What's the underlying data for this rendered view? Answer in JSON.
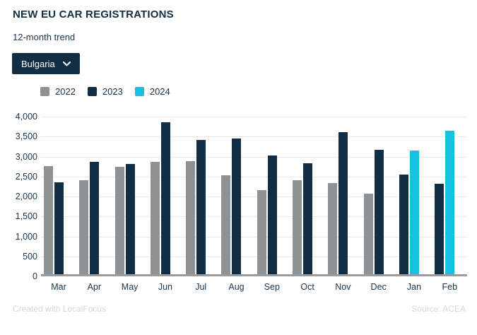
{
  "header": {
    "title": "NEW EU CAR REGISTRATIONS",
    "subtitle": "12-month trend",
    "country_selector": {
      "value": "Bulgaria"
    }
  },
  "legend": [
    {
      "label": "2022",
      "color": "#8f9294"
    },
    {
      "label": "2023",
      "color": "#112e44"
    },
    {
      "label": "2024",
      "color": "#16c2e0"
    }
  ],
  "chart_data": {
    "type": "bar",
    "title": "NEW EU CAR REGISTRATIONS",
    "subtitle": "12-month trend",
    "categories": [
      "Mar",
      "Apr",
      "May",
      "Jun",
      "Jul",
      "Aug",
      "Sep",
      "Oct",
      "Nov",
      "Dec",
      "Jan",
      "Feb"
    ],
    "series": [
      {
        "name": "2022",
        "color": "#8f9294",
        "values": [
          2700,
          2350,
          2690,
          2810,
          2830,
          2470,
          2100,
          2360,
          2290,
          2010,
          null,
          null
        ]
      },
      {
        "name": "2023",
        "color": "#112e44",
        "values": [
          2300,
          2820,
          2760,
          3800,
          3370,
          3400,
          2970,
          2780,
          3560,
          3110,
          2490,
          2270
        ]
      },
      {
        "name": "2024",
        "color": "#16c2e0",
        "values": [
          null,
          null,
          null,
          null,
          null,
          null,
          null,
          null,
          null,
          null,
          3100,
          3600
        ]
      }
    ],
    "xlabel": "",
    "ylabel": "",
    "ylim": [
      0,
      4000
    ],
    "ytick_step": 500,
    "ytick_labels": [
      "0",
      "500",
      "1,000",
      "1,500",
      "2,000",
      "2,500",
      "3,000",
      "3,500",
      "4,000"
    ],
    "grid": true,
    "legend_position": "top-left"
  },
  "colors": {
    "accent_navy": "#112e44",
    "bar_gray": "#8f9294",
    "bar_cyan": "#16c2e0",
    "gridline": "#e9e9e9",
    "axis_line": "#9b9b9b",
    "tick_text": "#16344e",
    "footer_text": "#d8d8d8"
  },
  "footer": {
    "left": "Created with LocalFocus",
    "right": "Source: ACEA"
  }
}
